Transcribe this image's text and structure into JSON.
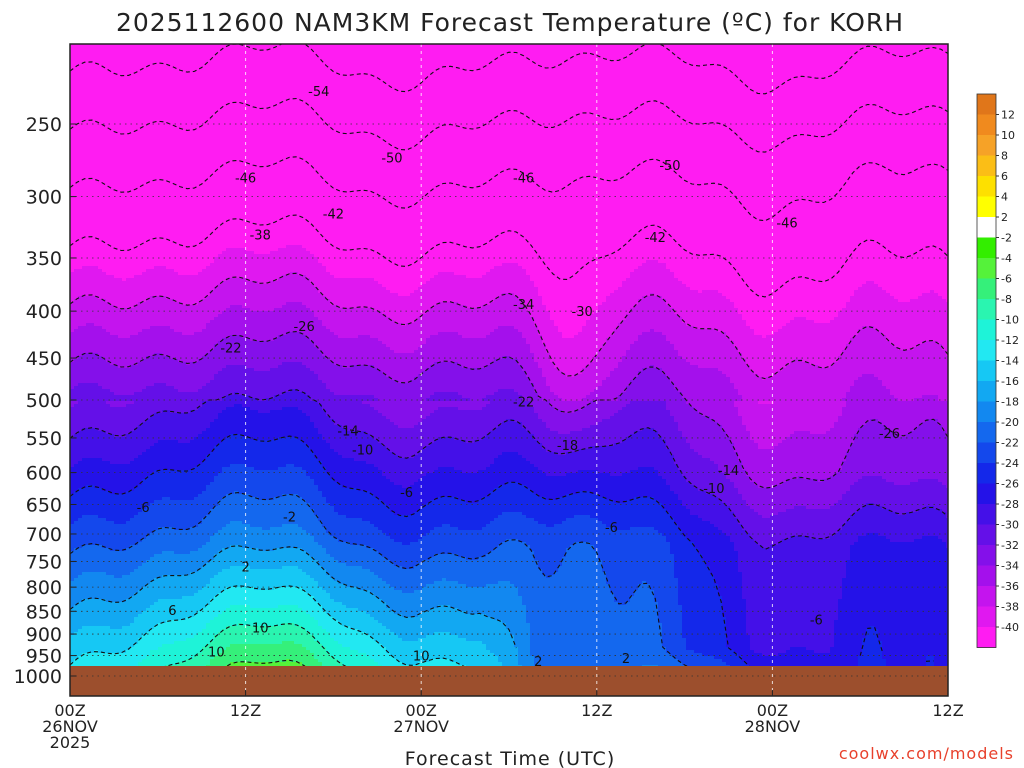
{
  "chart_data": {
    "type": "heatmap",
    "title": "2025112600 NAM3KM Forecast Temperature (ºC) for KORH",
    "xlabel": "Forecast Time (UTC)",
    "ylabel": "",
    "credit": "coolwx.com/models",
    "x_ticks": [
      {
        "hour": 0,
        "lines": [
          "00Z",
          "26NOV",
          "2025"
        ]
      },
      {
        "hour": 12,
        "lines": [
          "12Z"
        ]
      },
      {
        "hour": 24,
        "lines": [
          "00Z",
          "27NOV"
        ]
      },
      {
        "hour": 36,
        "lines": [
          "12Z"
        ]
      },
      {
        "hour": 48,
        "lines": [
          "00Z",
          "28NOV"
        ]
      },
      {
        "hour": 60,
        "lines": [
          "12Z"
        ]
      }
    ],
    "xlim": [
      0,
      60
    ],
    "y_ticks": [
      250,
      300,
      350,
      400,
      450,
      500,
      550,
      600,
      650,
      700,
      750,
      800,
      850,
      900,
      950,
      1000
    ],
    "y_unit": "hPa",
    "ylim": [
      200,
      1030
    ],
    "ground_level_hpa": 975,
    "colorbar": {
      "ticks": [
        12,
        10,
        8,
        6,
        4,
        2,
        -2,
        -4,
        -6,
        -8,
        -10,
        -12,
        -14,
        -16,
        -18,
        -20,
        -22,
        -24,
        -26,
        -28,
        -30,
        -32,
        -34,
        -36,
        -38,
        -40
      ],
      "bins": [
        {
          "lo": 12,
          "hi": 14,
          "color": "#e0761a"
        },
        {
          "lo": 10,
          "hi": 12,
          "color": "#f08a1e"
        },
        {
          "lo": 8,
          "hi": 10,
          "color": "#f6a227"
        },
        {
          "lo": 6,
          "hi": 8,
          "color": "#fbbe16"
        },
        {
          "lo": 4,
          "hi": 6,
          "color": "#fde000"
        },
        {
          "lo": 2,
          "hi": 4,
          "color": "#ffff00"
        },
        {
          "lo": -2,
          "hi": 2,
          "color": "#ffffff"
        },
        {
          "lo": -4,
          "hi": -2,
          "color": "#33ee00"
        },
        {
          "lo": -6,
          "hi": -4,
          "color": "#55f23a"
        },
        {
          "lo": -8,
          "hi": -6,
          "color": "#35f07a"
        },
        {
          "lo": -10,
          "hi": -8,
          "color": "#2af5b0"
        },
        {
          "lo": -12,
          "hi": -10,
          "color": "#1ef3d8"
        },
        {
          "lo": -14,
          "hi": -12,
          "color": "#22e8f2"
        },
        {
          "lo": -16,
          "hi": -14,
          "color": "#16c8f4"
        },
        {
          "lo": -18,
          "hi": -16,
          "color": "#12a8f2"
        },
        {
          "lo": -20,
          "hi": -18,
          "color": "#1288f0"
        },
        {
          "lo": -22,
          "hi": -20,
          "color": "#1468ee"
        },
        {
          "lo": -24,
          "hi": -22,
          "color": "#1448ec"
        },
        {
          "lo": -26,
          "hi": -24,
          "color": "#1428ea"
        },
        {
          "lo": -28,
          "hi": -26,
          "color": "#2412e8"
        },
        {
          "lo": -30,
          "hi": -28,
          "color": "#4410e8"
        },
        {
          "lo": -32,
          "hi": -30,
          "color": "#6410e8"
        },
        {
          "lo": -34,
          "hi": -32,
          "color": "#8410ea"
        },
        {
          "lo": -36,
          "hi": -34,
          "color": "#a410ec"
        },
        {
          "lo": -38,
          "hi": -36,
          "color": "#c414ee"
        },
        {
          "lo": -40,
          "hi": -38,
          "color": "#e018f0"
        },
        {
          "lo": -60,
          "hi": -40,
          "color": "#ff1cf2"
        }
      ]
    },
    "contour_labels": [
      {
        "value": "-54",
        "hour": 17,
        "p": 230
      },
      {
        "value": "-50",
        "hour": 22,
        "p": 272
      },
      {
        "value": "-50",
        "hour": 41,
        "p": 277
      },
      {
        "value": "-46",
        "hour": 12,
        "p": 286
      },
      {
        "value": "-46",
        "hour": 31,
        "p": 286
      },
      {
        "value": "-46",
        "hour": 49,
        "p": 320
      },
      {
        "value": "-42",
        "hour": 18,
        "p": 313
      },
      {
        "value": "-42",
        "hour": 40,
        "p": 332
      },
      {
        "value": "-38",
        "hour": 13,
        "p": 330
      },
      {
        "value": "-34",
        "hour": 31,
        "p": 393
      },
      {
        "value": "-30",
        "hour": 35,
        "p": 400
      },
      {
        "value": "-26",
        "hour": 16,
        "p": 415
      },
      {
        "value": "-26",
        "hour": 56,
        "p": 543
      },
      {
        "value": "-22",
        "hour": 11,
        "p": 438
      },
      {
        "value": "-22",
        "hour": 31,
        "p": 502
      },
      {
        "value": "-18",
        "hour": 34,
        "p": 560
      },
      {
        "value": "-14",
        "hour": 19,
        "p": 540
      },
      {
        "value": "-14",
        "hour": 45,
        "p": 596
      },
      {
        "value": "-10",
        "hour": 20,
        "p": 566
      },
      {
        "value": "-10",
        "hour": 44,
        "p": 624
      },
      {
        "value": "-6",
        "hour": 5,
        "p": 654
      },
      {
        "value": "-6",
        "hour": 23,
        "p": 630
      },
      {
        "value": "-6",
        "hour": 37,
        "p": 688
      },
      {
        "value": "-6",
        "hour": 51,
        "p": 868
      },
      {
        "value": "-2",
        "hour": 15,
        "p": 670
      },
      {
        "value": "2",
        "hour": 12,
        "p": 760
      },
      {
        "value": "2",
        "hour": 32,
        "p": 963
      },
      {
        "value": "2",
        "hour": 38,
        "p": 956
      },
      {
        "value": "6",
        "hour": 7,
        "p": 847
      },
      {
        "value": "10",
        "hour": 13,
        "p": 885
      },
      {
        "value": "10",
        "hour": 10,
        "p": 940
      },
      {
        "value": "10",
        "hour": 24,
        "p": 950
      }
    ]
  }
}
